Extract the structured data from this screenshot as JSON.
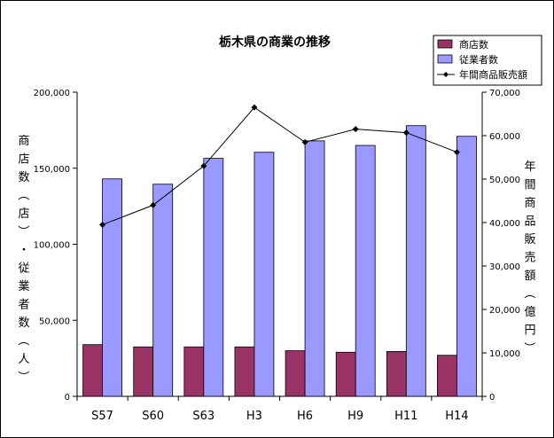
{
  "chart_data": {
    "type": "bar",
    "title": "栃木県の商業の推移",
    "categories": [
      "S57",
      "S60",
      "S63",
      "H3",
      "H6",
      "H9",
      "H11",
      "H14"
    ],
    "series": [
      {
        "name": "商店数",
        "kind": "bar",
        "axis": "left",
        "color": "#993366",
        "values": [
          34000,
          32500,
          32500,
          32500,
          30000,
          29000,
          29500,
          27000
        ]
      },
      {
        "name": "従業者数",
        "kind": "bar",
        "axis": "left",
        "color": "#9999ff",
        "values": [
          143000,
          139500,
          156500,
          160500,
          168000,
          165000,
          178000,
          171000
        ]
      },
      {
        "name": "年間商品販売額",
        "kind": "line",
        "axis": "right",
        "color": "#000000",
        "values": [
          39500,
          44000,
          53000,
          66500,
          58500,
          61500,
          60700,
          56200
        ]
      }
    ],
    "y_left": {
      "label": "商店数（店）・従業者数（人）",
      "range": [
        0,
        200000
      ],
      "ticks": [
        "0",
        "50,000",
        "100,000",
        "150,000",
        "200,000"
      ]
    },
    "y_right": {
      "label": "年間商品販売額（億円）",
      "range": [
        0,
        70000
      ],
      "ticks": [
        "0",
        "10,000",
        "20,000",
        "30,000",
        "40,000",
        "50,000",
        "60,000",
        "70,000"
      ]
    },
    "grid": false,
    "legend": "top-right"
  }
}
